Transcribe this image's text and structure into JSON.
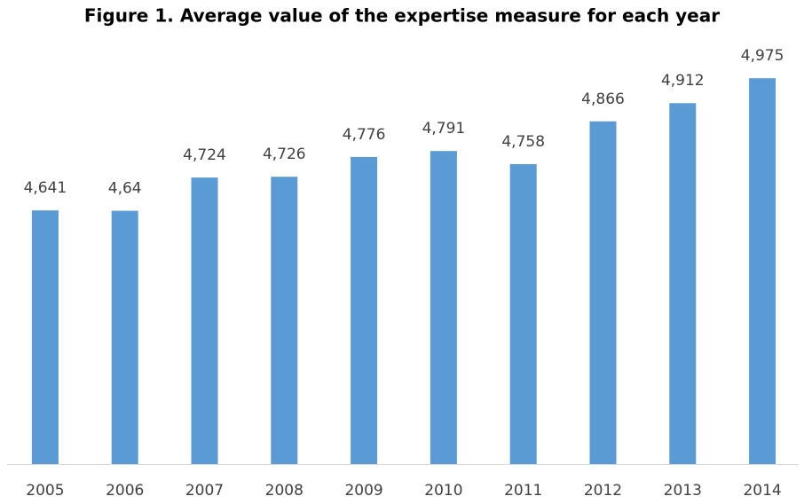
{
  "chart_data": {
    "type": "bar",
    "title": "Figure 1. Average value of the expertise measure for each year",
    "categories": [
      "2005",
      "2006",
      "2007",
      "2008",
      "2009",
      "2010",
      "2011",
      "2012",
      "2013",
      "2014"
    ],
    "values": [
      4.641,
      4.64,
      4.724,
      4.726,
      4.776,
      4.791,
      4.758,
      4.866,
      4.912,
      4.975
    ],
    "value_labels": [
      "4,641",
      "4,64",
      "4,724",
      "4,726",
      "4,776",
      "4,791",
      "4,758",
      "4,866",
      "4,912",
      "4,975"
    ],
    "color": "#5b9bd5",
    "ylim": [
      4,
      5
    ]
  }
}
